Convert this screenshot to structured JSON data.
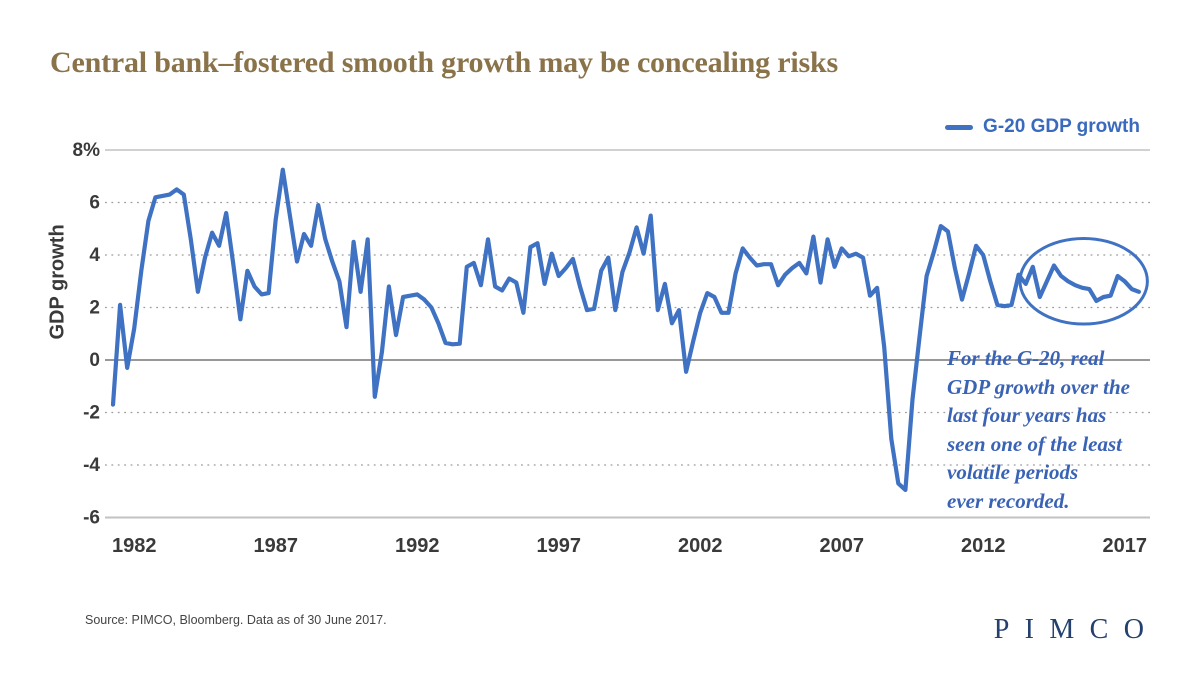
{
  "title": "Central bank–fostered smooth growth may be concealing risks",
  "legend": {
    "label": "G-20 GDP growth"
  },
  "annotation": {
    "lines": [
      "For the G-20, real",
      "GDP growth over the",
      "last four years has",
      "seen one of the least",
      "volatile periods",
      "ever recorded."
    ]
  },
  "source": "Source: PIMCO, Bloomberg. Data as of 30 June 2017.",
  "logo": "PIMCO",
  "colors": {
    "title_brown": "#8a7249",
    "line_blue": "#3f72c2",
    "annotation_blue": "#3a63b5",
    "legend_blue": "#3a6abd",
    "axis_text": "#3a3a3a",
    "grid_dotted": "#9c9c9c",
    "grid_edge": "#c2c2c2",
    "zero_line": "#8a8a8a",
    "logo_navy": "#23406e"
  },
  "chart_data": {
    "type": "line",
    "title": "Central bank–fostered smooth growth may be concealing risks",
    "xlabel": "",
    "ylabel": "GDP growth",
    "ylim": [
      -6,
      8
    ],
    "xlim_years": [
      1981.0,
      2017.9
    ],
    "grid": "dotted horizontal",
    "legend_position": "top-right",
    "yticks": [
      8,
      6,
      4,
      2,
      0,
      -2,
      -4,
      -6
    ],
    "ytick_labels": [
      "8%",
      "6",
      "4",
      "2",
      "0",
      "-2",
      "-4",
      "-6"
    ],
    "xticks": [
      1982,
      1987,
      1992,
      1997,
      2002,
      2007,
      2012,
      2017
    ],
    "series": [
      {
        "name": "G-20 GDP growth",
        "start_year": 1981.25,
        "step_years": 0.25,
        "unit": "percent",
        "values": [
          -1.7,
          2.1,
          -0.3,
          1.2,
          3.4,
          5.3,
          6.2,
          6.25,
          6.3,
          6.5,
          6.3,
          4.6,
          2.6,
          3.9,
          4.85,
          4.35,
          5.6,
          3.65,
          1.55,
          3.4,
          2.8,
          2.5,
          2.55,
          5.35,
          7.25,
          5.5,
          3.75,
          4.8,
          4.35,
          5.9,
          4.6,
          3.75,
          3.0,
          1.25,
          4.5,
          2.6,
          4.6,
          -1.4,
          0.3,
          2.8,
          0.95,
          2.4,
          2.45,
          2.5,
          2.3,
          2.0,
          1.4,
          0.65,
          0.6,
          0.62,
          3.55,
          3.7,
          2.85,
          4.6,
          2.8,
          2.65,
          3.1,
          2.95,
          1.8,
          4.3,
          4.45,
          2.9,
          4.05,
          3.2,
          3.5,
          3.85,
          2.8,
          1.9,
          1.95,
          3.4,
          3.9,
          1.9,
          3.35,
          4.1,
          5.05,
          4.05,
          5.5,
          1.9,
          2.9,
          1.4,
          1.9,
          -0.45,
          0.7,
          1.8,
          2.55,
          2.4,
          1.8,
          1.8,
          3.3,
          4.25,
          3.9,
          3.6,
          3.65,
          3.65,
          2.85,
          3.25,
          3.5,
          3.7,
          3.3,
          4.7,
          2.95,
          4.6,
          3.55,
          4.25,
          3.95,
          4.05,
          3.9,
          2.45,
          2.75,
          0.5,
          -3.0,
          -4.7,
          -4.95,
          -1.5,
          0.9,
          3.2,
          4.1,
          5.1,
          4.9,
          3.5,
          2.3,
          3.3,
          4.35,
          4.0,
          3.0,
          2.1,
          2.05,
          2.1,
          3.25,
          2.9,
          3.55,
          2.4,
          3.0,
          3.6,
          3.2,
          3.0,
          2.85,
          2.75,
          2.7,
          2.25,
          2.4,
          2.45,
          3.2,
          3.0,
          2.7,
          2.6
        ]
      }
    ],
    "highlight_ellipse": {
      "center_year": 2015.55,
      "center_value": 3.0,
      "radius_years": 2.25,
      "radius_units": 1.63,
      "meaning": "low-volatility period of last four years"
    }
  }
}
